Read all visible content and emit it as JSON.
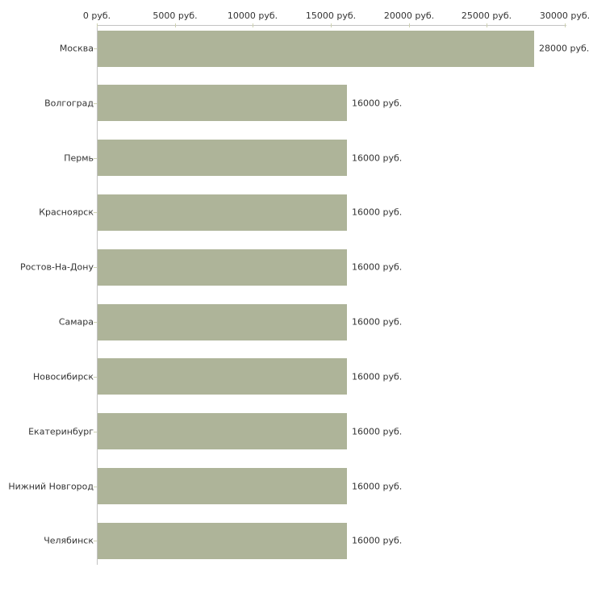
{
  "chart_data": {
    "type": "bar",
    "orientation": "horizontal",
    "title": "",
    "xlabel": "",
    "ylabel": "",
    "unit": "руб.",
    "categories": [
      "Москва",
      "Волгоград",
      "Пермь",
      "Красноярск",
      "Ростов-На-Дону",
      "Самара",
      "Новосибирск",
      "Екатеринбург",
      "Нижний Новгород",
      "Челябинск"
    ],
    "values": [
      28000,
      16000,
      16000,
      16000,
      16000,
      16000,
      16000,
      16000,
      16000,
      16000
    ],
    "value_labels": [
      "28000 руб.",
      "16000 руб.",
      "16000 руб.",
      "16000 руб.",
      "16000 руб.",
      "16000 руб.",
      "16000 руб.",
      "16000 руб.",
      "16000 руб.",
      "16000 руб."
    ],
    "x_ticks": [
      0,
      5000,
      10000,
      15000,
      20000,
      25000,
      30000
    ],
    "x_tick_labels": [
      "0 руб.",
      "5000 руб.",
      "10000 руб.",
      "15000 руб.",
      "20000 руб.",
      "25000 руб.",
      "30000 руб."
    ],
    "xlim": [
      0,
      30000
    ],
    "grid": false,
    "legend": "none",
    "value_label_position": "right-of-bar",
    "axis_position": "top-left",
    "bar_color": "#aeb499",
    "axis_color": "#c3c3c3",
    "tick_color": "#ced2b2",
    "text_color": "#333333",
    "background_color": "#ffffff"
  }
}
